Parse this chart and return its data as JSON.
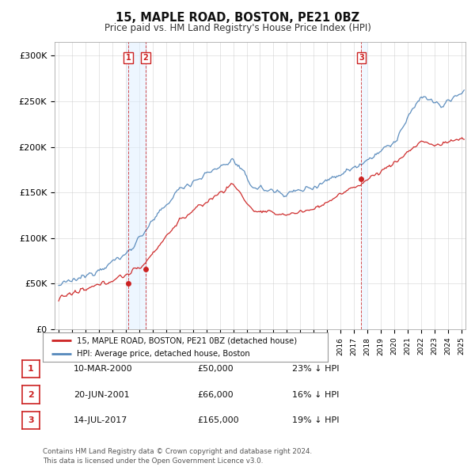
{
  "title": "15, MAPLE ROAD, BOSTON, PE21 0BZ",
  "subtitle": "Price paid vs. HM Land Registry's House Price Index (HPI)",
  "yticks": [
    0,
    50000,
    100000,
    150000,
    200000,
    250000,
    300000
  ],
  "ytick_labels": [
    "£0",
    "£50K",
    "£100K",
    "£150K",
    "£200K",
    "£250K",
    "£300K"
  ],
  "xlim_start": 1994.7,
  "xlim_end": 2025.3,
  "ylim": [
    0,
    315000
  ],
  "hpi_color": "#5588bb",
  "sale_color": "#cc2222",
  "sale_label": "15, MAPLE ROAD, BOSTON, PE21 0BZ (detached house)",
  "hpi_label": "HPI: Average price, detached house, Boston",
  "transactions": [
    {
      "num": 1,
      "date": "10-MAR-2000",
      "price": 50000,
      "pct": "23%",
      "direction": "↓",
      "year": 2000.19
    },
    {
      "num": 2,
      "date": "20-JUN-2001",
      "price": 66000,
      "pct": "16%",
      "direction": "↓",
      "year": 2001.47
    },
    {
      "num": 3,
      "date": "14-JUL-2017",
      "price": 165000,
      "pct": "19%",
      "direction": "↓",
      "year": 2017.54
    }
  ],
  "footer": "Contains HM Land Registry data © Crown copyright and database right 2024.\nThis data is licensed under the Open Government Licence v3.0.",
  "background_color": "#ffffff",
  "grid_color": "#cccccc",
  "col_fill_12_color": "#ddeeff",
  "col_fill_3_color": "#ddeeff"
}
